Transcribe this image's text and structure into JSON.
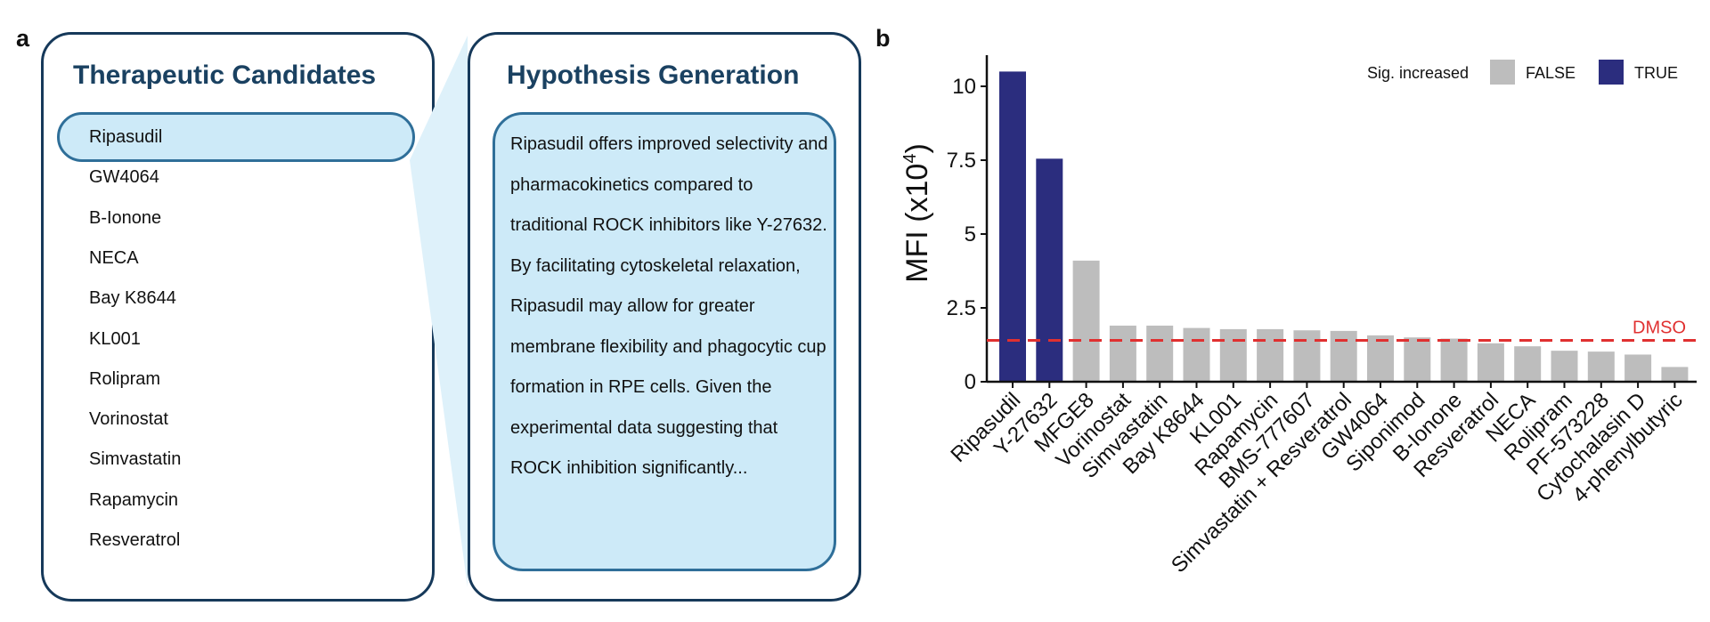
{
  "panel_a": {
    "letter": "a",
    "candidates_title": "Therapeutic Candidates",
    "candidates": [
      "Ripasudil",
      "GW4064",
      "B-Ionone",
      "NECA",
      "Bay K8644",
      "KL001",
      "Rolipram",
      "Vorinostat",
      "Simvastatin",
      "Rapamycin",
      "Resveratrol"
    ],
    "hypothesis_title": "Hypothesis Generation",
    "hypothesis_text": "Ripasudil offers improved selectivity and pharmacokinetics compared to traditional ROCK inhibitors like Y-27632. By facilitating cytoskeletal relaxation, Ripasudil may allow for greater membrane flexibility and phagocytic cup formation in RPE cells. Given the experimental data suggesting that ROCK inhibition significantly...",
    "colors": {
      "border": "#16395a",
      "title": "#1a4161",
      "highlight_fill": "#cdeaf8",
      "highlight_border": "#2f6f99"
    }
  },
  "panel_b_letter": "b",
  "chart_data": {
    "type": "bar",
    "title": "",
    "xlabel": "",
    "ylabel": "MFI (x10",
    "ylabel_superscript": "4",
    "ylabel_suffix": ")",
    "ylim": [
      0,
      11
    ],
    "yticks": [
      0,
      2.5,
      5,
      7.5,
      10
    ],
    "ytick_labels": [
      "0",
      "2.5",
      "5",
      "7.5",
      "10"
    ],
    "categories": [
      "Ripasudil",
      "Y-27632",
      "MFGE8",
      "Vorinostat",
      "Simvastatin",
      "Bay K8644",
      "KL001",
      "Rapamycin",
      "BMS-777607",
      "Simvastatin + Resveratrol",
      "GW4064",
      "Siponimod",
      "B-Ionone",
      "Resveratrol",
      "NECA",
      "Rolipram",
      "PF-573228",
      "Cytochalasin D",
      "4-phenylbutyric"
    ],
    "values": [
      10.5,
      7.55,
      4.1,
      1.9,
      1.9,
      1.82,
      1.78,
      1.78,
      1.74,
      1.72,
      1.57,
      1.5,
      1.46,
      1.3,
      1.2,
      1.05,
      1.02,
      0.92,
      0.5
    ],
    "significant": [
      true,
      true,
      false,
      false,
      false,
      false,
      false,
      false,
      false,
      false,
      false,
      false,
      false,
      false,
      false,
      false,
      false,
      false,
      false
    ],
    "reference_line": {
      "label": "DMSO",
      "value": 1.4,
      "color": "#e03030"
    },
    "legend": {
      "title": "Sig. increased",
      "placement": "top-right",
      "entries": [
        {
          "label": "FALSE",
          "color": "#bdbdbd"
        },
        {
          "label": "TRUE",
          "color": "#2b2d7e"
        }
      ]
    },
    "grid": false
  }
}
